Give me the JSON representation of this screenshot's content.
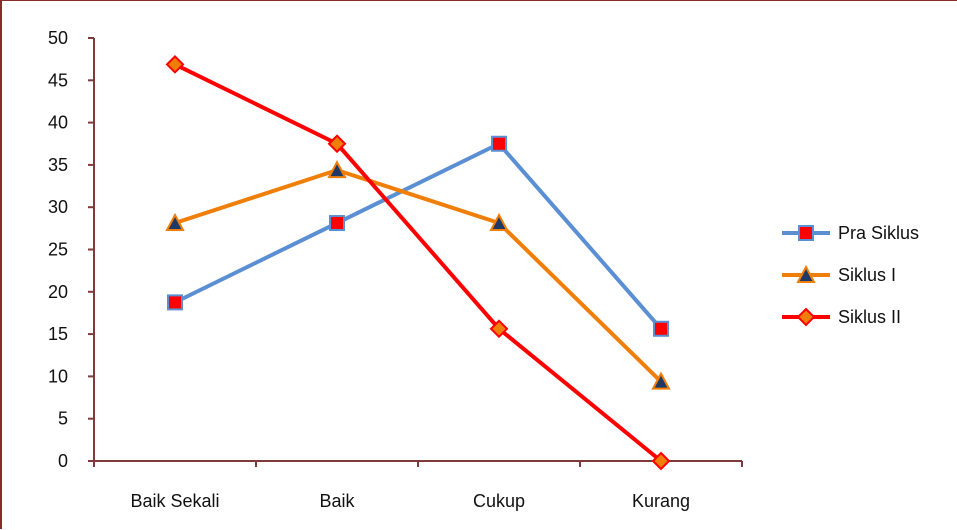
{
  "chart_data": {
    "type": "line",
    "categories": [
      "Baik Sekali",
      "Baik",
      "Cukup",
      "Kurang"
    ],
    "ylim": [
      0,
      50
    ],
    "yticks": [
      0,
      5,
      10,
      15,
      20,
      25,
      30,
      35,
      40,
      45,
      50
    ],
    "grid": false,
    "legend_position": "right",
    "series": [
      {
        "name": "Pra Siklus",
        "values": [
          18.75,
          28.13,
          37.5,
          15.63
        ],
        "color": "#5b8fd3",
        "marker": "square",
        "marker_color": "#ff0000"
      },
      {
        "name": "Siklus I",
        "values": [
          28.13,
          34.38,
          28.13,
          9.38
        ],
        "color": "#f07f09",
        "marker": "triangle",
        "marker_color": "#1f3864"
      },
      {
        "name": "Siklus II",
        "values": [
          46.88,
          37.5,
          15.63,
          0
        ],
        "color": "#ff0000",
        "marker": "diamond",
        "marker_color": "#f07f09"
      }
    ]
  }
}
